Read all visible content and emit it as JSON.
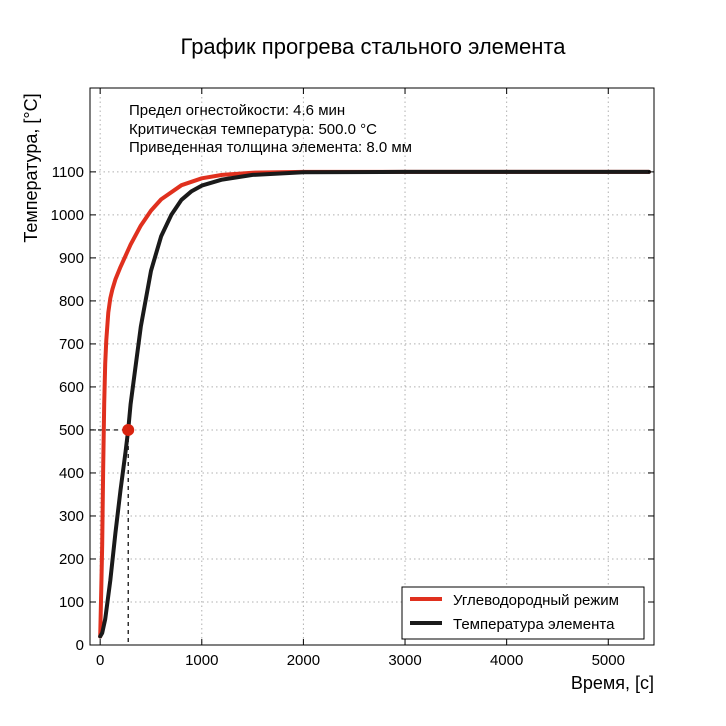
{
  "chart_data": {
    "type": "line",
    "title": "График прогрева стального элемента",
    "xlabel": "Время, [с]",
    "ylabel": "Температура, [°C]",
    "xlim": [
      -100,
      5450
    ],
    "ylim": [
      0,
      1295
    ],
    "x_ticks": [
      0,
      1000,
      2000,
      3000,
      4000,
      5000
    ],
    "y_ticks": [
      0,
      100,
      200,
      300,
      400,
      500,
      600,
      700,
      800,
      900,
      1000,
      1100
    ],
    "grid": true,
    "legend_position": "bottom-right",
    "annotations": [
      "Предел огнестойкости: 4.6 мин",
      "Критическая температура: 500.0 °C",
      "Приведенная толщина элемента: 8.0 мм"
    ],
    "series": [
      {
        "name": "Углеводородный режим",
        "color": "#e0301e",
        "x": [
          0,
          10,
          20,
          30,
          40,
          50,
          60,
          80,
          100,
          120,
          150,
          200,
          300,
          400,
          500,
          600,
          800,
          1000,
          1200,
          1500,
          2000,
          3000,
          4000,
          5000,
          5400
        ],
        "y": [
          20,
          123,
          235,
          415,
          561,
          654,
          709,
          773,
          806,
          827,
          850,
          879,
          931,
          975,
          1010,
          1036,
          1069,
          1085,
          1093,
          1098,
          1100,
          1100,
          1100,
          1100,
          1100
        ]
      },
      {
        "name": "Температура элемента",
        "color": "#1a1a1a",
        "x": [
          0,
          20,
          50,
          100,
          150,
          200,
          250,
          276,
          300,
          400,
          500,
          600,
          700,
          800,
          900,
          1000,
          1200,
          1500,
          2000,
          3000,
          4000,
          5000,
          5400
        ],
        "y": [
          20,
          28,
          60,
          150,
          260,
          360,
          450,
          500,
          560,
          740,
          870,
          950,
          1000,
          1035,
          1055,
          1068,
          1082,
          1093,
          1099,
          1100,
          1100,
          1100,
          1100
        ]
      }
    ],
    "critical_point": {
      "x": 276,
      "y": 500,
      "color": "#d9230f"
    }
  }
}
